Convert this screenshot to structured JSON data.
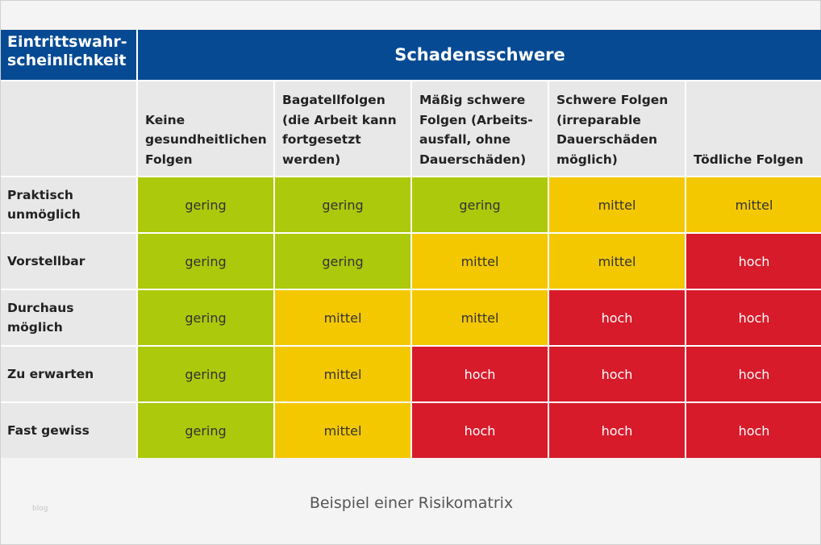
{
  "corner_label": "Eintrittswahr-\nscheinlichkeit",
  "title": "Schadensschwere",
  "columns": [
    "Keine gesundheitlichen Folgen",
    "Bagatellfolgen (die Arbeit kann fortgesetzt werden)",
    "Mäßig schwere Folgen (Arbeits-ausfall, ohne Dauerschäden)",
    "Schwere Folgen (irreparable Dauerschäden möglich)",
    "Tödliche Folgen"
  ],
  "rows": [
    {
      "label": "Praktisch unmöglich",
      "cells": [
        "gering",
        "gering",
        "gering",
        "mittel",
        "mittel"
      ]
    },
    {
      "label": "Vorstellbar",
      "cells": [
        "gering",
        "gering",
        "mittel",
        "mittel",
        "hoch"
      ]
    },
    {
      "label": "Durchaus möglich",
      "cells": [
        "gering",
        "mittel",
        "mittel",
        "hoch",
        "hoch"
      ]
    },
    {
      "label": "Zu erwarten",
      "cells": [
        "gering",
        "mittel",
        "hoch",
        "hoch",
        "hoch"
      ]
    },
    {
      "label": "Fast gewiss",
      "cells": [
        "gering",
        "mittel",
        "hoch",
        "hoch",
        "hoch"
      ]
    }
  ],
  "colors": {
    "header": "#064a93",
    "gering": "#adc90b",
    "mittel": "#f4c800",
    "hoch": "#d81b2b"
  },
  "caption": "Beispiel einer Risikomatrix",
  "watermark": "blog"
}
